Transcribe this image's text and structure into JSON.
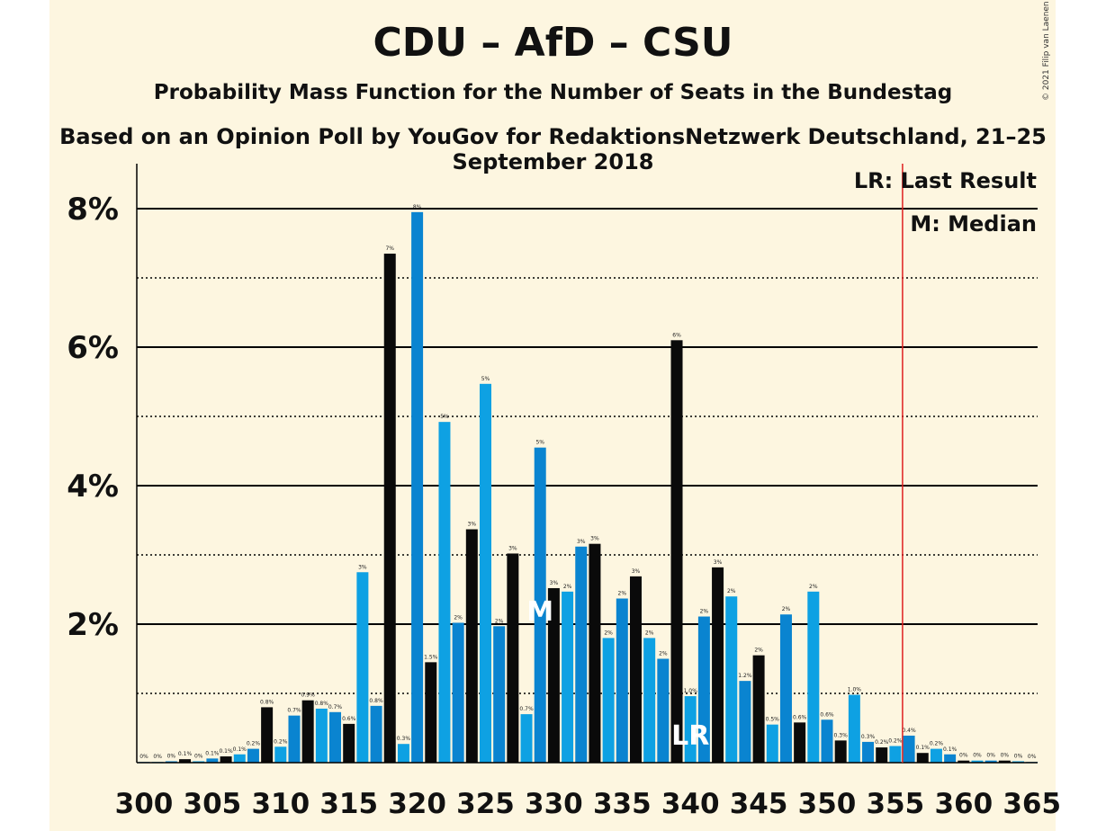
{
  "title": "CDU – AfD – CSU",
  "subtitle": "Probability Mass Function for the Number of Seats in the Bundestag",
  "source": "Based on an Opinion Poll by YouGov for RedaktionsNetzwerk Deutschland, 21–25 September 2018",
  "copyright": "© 2021 Filip van Laenen",
  "legend": {
    "last_result": "LR: Last Result",
    "median": "M: Median"
  },
  "markers": {
    "median_label": "M",
    "median_seat": 329,
    "last_result_label": "LR",
    "last_result_seat": 340,
    "majority_seat": 355
  },
  "colors": {
    "dark": "#0a0a0a",
    "blue_light": "#0ea1e3",
    "blue_dark": "#0a84d0",
    "majority_line": "#e02020",
    "background": "#fdf6e0"
  },
  "chart_data": {
    "type": "bar",
    "x": [
      300,
      301,
      302,
      303,
      304,
      305,
      306,
      307,
      308,
      309,
      310,
      311,
      312,
      313,
      314,
      315,
      316,
      317,
      318,
      319,
      320,
      321,
      322,
      323,
      324,
      325,
      326,
      327,
      328,
      329,
      330,
      331,
      332,
      333,
      334,
      335,
      336,
      337,
      338,
      339,
      340,
      341,
      342,
      343,
      344,
      345,
      346,
      347,
      348,
      349,
      350,
      351,
      352,
      353,
      354,
      355,
      356,
      357,
      358,
      359,
      360,
      361,
      362,
      363,
      364,
      365
    ],
    "values": [
      0.01,
      0.01,
      0.02,
      0.05,
      0.02,
      0.06,
      0.09,
      0.12,
      0.2,
      0.8,
      0.23,
      0.68,
      0.9,
      0.78,
      0.73,
      0.56,
      2.75,
      0.82,
      7.35,
      0.27,
      7.95,
      1.45,
      4.92,
      2.02,
      3.37,
      5.47,
      1.97,
      3.02,
      0.7,
      4.55,
      2.52,
      2.47,
      3.12,
      3.16,
      1.8,
      2.37,
      2.69,
      1.8,
      1.5,
      6.1,
      0.96,
      2.11,
      2.82,
      2.4,
      1.18,
      1.55,
      0.55,
      2.14,
      0.58,
      2.47,
      0.62,
      0.32,
      0.98,
      0.3,
      0.22,
      0.24,
      0.39,
      0.14,
      0.2,
      0.12,
      0.03,
      0.03,
      0.03,
      0.03,
      0.02,
      0.01
    ],
    "value_labels": [
      "0%",
      "0%",
      "0%",
      "0.1%",
      "0%",
      "0.1%",
      "0.1%",
      "0.1%",
      "0.2%",
      "0.8%",
      "0.2%",
      "0.7%",
      "0.9%",
      "0.8%",
      "0.7%",
      "0.6%",
      "3%",
      "0.8%",
      "7%",
      "0.3%",
      "8%",
      "1.5%",
      "5%",
      "2%",
      "3%",
      "5%",
      "2%",
      "3%",
      "0.7%",
      "5%",
      "3%",
      "2%",
      "3%",
      "3%",
      "2%",
      "2%",
      "3%",
      "2%",
      "2%",
      "6%",
      "1.0%",
      "2%",
      "3%",
      "2%",
      "1.2%",
      "2%",
      "0.5%",
      "2%",
      "0.6%",
      "2%",
      "0.6%",
      "0.3%",
      "1.0%",
      "0.3%",
      "0.2%",
      "0.2%",
      "0.4%",
      "0.1%",
      "0.2%",
      "0.1%",
      "0%",
      "0%",
      "0%",
      "0%",
      "0%",
      "0%"
    ],
    "x_ticks": [
      "300",
      "305",
      "310",
      "315",
      "320",
      "325",
      "330",
      "335",
      "340",
      "345",
      "350",
      "355",
      "360",
      "365"
    ],
    "y_ticks": [
      "2%",
      "4%",
      "6%",
      "8%"
    ],
    "ylim": [
      0,
      8.7
    ],
    "grid": true,
    "legend_position": "top-right"
  }
}
